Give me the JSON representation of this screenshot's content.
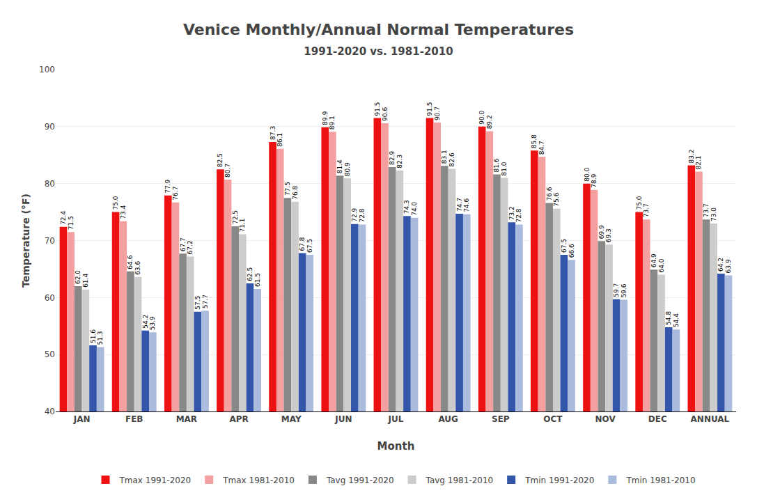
{
  "chart_data": {
    "type": "bar",
    "title": "Venice Monthly/Annual Normal Temperatures",
    "subtitle": "1991-2020 vs. 1981-2010",
    "xlabel": "Month",
    "ylabel": "Temperature (°F)",
    "categories": [
      "JAN",
      "FEB",
      "MAR",
      "APR",
      "MAY",
      "JUN",
      "JUL",
      "AUG",
      "SEP",
      "OCT",
      "NOV",
      "DEC",
      "ANNUAL"
    ],
    "series": [
      {
        "name": "Tmax 1991-2020",
        "color": "#ee1111",
        "values": [
          72.4,
          75.0,
          77.9,
          82.5,
          87.3,
          89.9,
          91.5,
          91.5,
          90.0,
          85.8,
          80.0,
          75.0,
          83.2
        ],
        "value_labels": [
          "72.4",
          "75.0",
          "77.9",
          "82.5",
          "87.3",
          "89.9",
          "91.5",
          "91.5",
          "90.0",
          "85.8",
          "80.0",
          "75.0",
          "83.2"
        ]
      },
      {
        "name": "Tmax 1981-2010",
        "color": "#f5a0a0",
        "values": [
          71.5,
          73.4,
          76.7,
          80.7,
          86.1,
          89.1,
          90.6,
          90.7,
          89.2,
          84.7,
          78.9,
          73.7,
          82.1
        ],
        "value_labels": [
          "71.5",
          "73.4",
          "76.7",
          "80.7",
          "86.1",
          "89.1",
          "90.6",
          "90.7",
          "89.2",
          "84.7",
          "78.9",
          "73.7",
          "82.1"
        ]
      },
      {
        "name": "Tavg 1991-2020",
        "color": "#888888",
        "values": [
          62.0,
          64.6,
          67.7,
          72.5,
          77.5,
          81.4,
          82.9,
          83.1,
          81.6,
          76.6,
          69.9,
          64.9,
          73.7
        ],
        "value_labels": [
          "62.0",
          "64.6",
          "67.7",
          "72.5",
          "77.5",
          "81.4",
          "82.9",
          "83.1",
          "81.6",
          "76.6",
          "69.9",
          "64.9",
          "73.7"
        ]
      },
      {
        "name": "Tavg 1981-2010",
        "color": "#cccccc",
        "values": [
          61.4,
          63.6,
          67.2,
          71.1,
          76.8,
          80.9,
          82.3,
          82.6,
          81.0,
          75.6,
          69.3,
          64.0,
          73.0
        ],
        "value_labels": [
          "61.4",
          "63.6",
          "67.2",
          "71.1",
          "76.8",
          "80.9",
          "82.3",
          "82.6",
          "81.0",
          "75.6",
          "69.3",
          "64.0",
          "73.0"
        ]
      },
      {
        "name": "Tmin 1991-2020",
        "color": "#3355aa",
        "values": [
          51.6,
          54.2,
          57.5,
          62.5,
          67.8,
          72.9,
          74.3,
          74.7,
          73.2,
          67.5,
          59.7,
          54.8,
          64.2
        ],
        "value_labels": [
          "51.6",
          "54.2",
          "57.5",
          "62.5",
          "67.8",
          "72.9",
          "74.3",
          "74.7",
          "73.2",
          "67.5",
          "59.7",
          "54.8",
          "64.2"
        ]
      },
      {
        "name": "Tmin 1981-2010",
        "color": "#aabbdd",
        "values": [
          51.3,
          53.9,
          57.7,
          61.5,
          67.5,
          72.8,
          74.0,
          74.6,
          72.8,
          66.6,
          59.6,
          54.4,
          63.9
        ],
        "value_labels": [
          "51.3",
          "53.9",
          "57.7",
          "61.5",
          "67.5",
          "72.8",
          "74.0",
          "74.6",
          "72.8",
          "66.6",
          "59.6",
          "54.4",
          "63.9"
        ]
      }
    ],
    "ylim": [
      40,
      100
    ],
    "yticks": [
      40,
      50,
      60,
      70,
      80,
      90,
      100
    ],
    "grid": true,
    "legend": "bottom",
    "data_labels": true
  }
}
